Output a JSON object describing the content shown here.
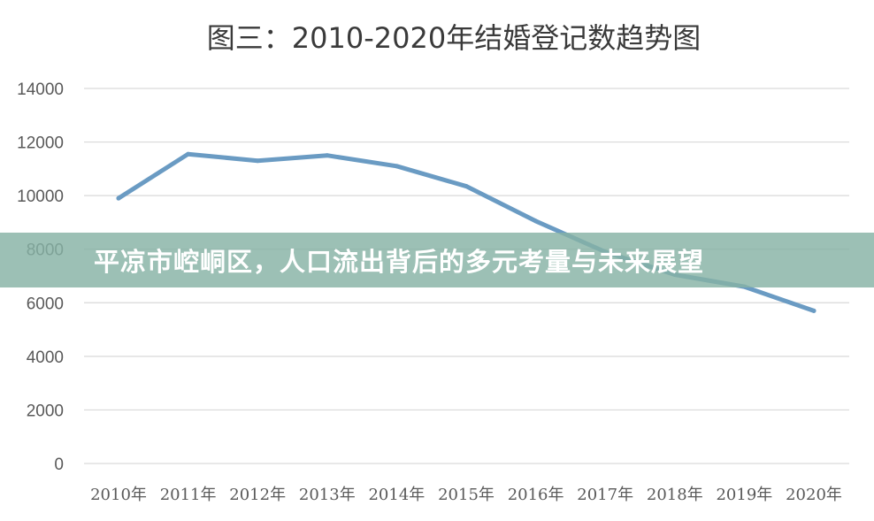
{
  "banner": {
    "text": "平凉市崆峒区，人口流出背后的多元考量与未来展望",
    "color": "#86b2a5"
  },
  "chart_data": {
    "type": "line",
    "title": "图三：2010-2020年结婚登记数趋势图",
    "xlabel": "",
    "ylabel": "",
    "categories": [
      "2010年",
      "2011年",
      "2012年",
      "2013年",
      "2014年",
      "2015年",
      "2016年",
      "2017年",
      "2018年",
      "2019年",
      "2020年"
    ],
    "series": [
      {
        "values": [
          9900,
          11550,
          11300,
          11500,
          11100,
          10350,
          9050,
          7900,
          7050,
          6600,
          5700
        ],
        "color": "#6a9bc3"
      }
    ],
    "ylim": [
      0,
      14000
    ],
    "yticks": [
      "0",
      "2000",
      "4000",
      "6000",
      "8000",
      "10000",
      "12000",
      "14000"
    ],
    "grid": true,
    "legend": "none"
  }
}
